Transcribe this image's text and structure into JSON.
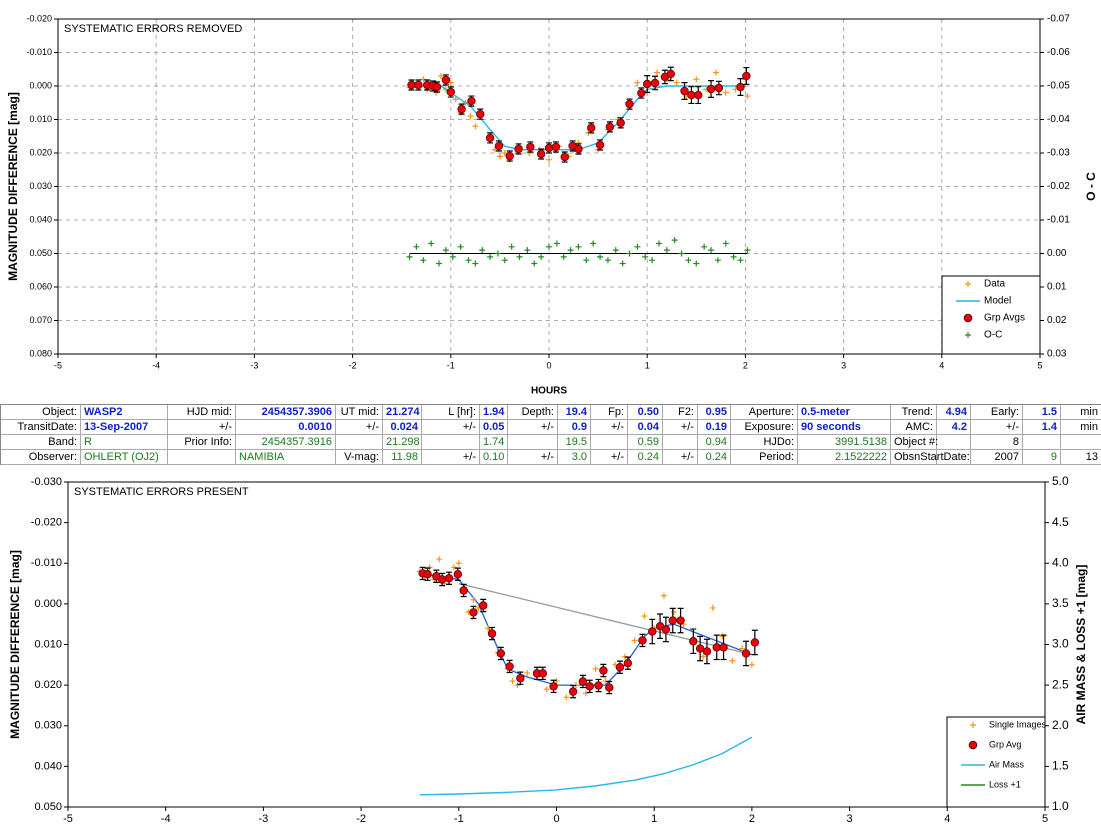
{
  "chart_data": [
    {
      "type": "scatter",
      "title": "SYSTEMATIC ERRORS REMOVED",
      "x_label": "HOURS",
      "y_label": "MAGNITUDE DIFFERENCE [mag]",
      "y2_label": "O - C",
      "xlim": [
        -5,
        5
      ],
      "xticks": [
        -5,
        -4,
        -3,
        -2,
        -1,
        0,
        1,
        2,
        3,
        4,
        5
      ],
      "ylim": [
        0.08,
        -0.02
      ],
      "yticks": [
        {
          "value": -0.02,
          "label": "-0.020"
        },
        {
          "value": -0.01,
          "label": "-0.010"
        },
        {
          "value": 0,
          "label": "0.000"
        },
        {
          "value": 0.01,
          "label": "0.010"
        },
        {
          "value": 0.02,
          "label": "0.020"
        },
        {
          "value": 0.03,
          "label": "0.030"
        },
        {
          "value": 0.04,
          "label": "0.040"
        },
        {
          "value": 0.05,
          "label": "0.050"
        },
        {
          "value": 0.06,
          "label": "0.060"
        },
        {
          "value": 0.07,
          "label": "0.070"
        },
        {
          "value": 0.08,
          "label": "0.080"
        }
      ],
      "y2lim": [
        0.03,
        -0.07
      ],
      "y2ticks": [
        -0.07,
        -0.06,
        -0.05,
        -0.04,
        -0.03,
        -0.02,
        -0.01,
        {
          "value": 0,
          "label": "0.00"
        },
        0.01,
        0.02,
        0.03
      ],
      "grid": true,
      "legend": "lower right",
      "series": [
        {
          "name": "Data",
          "color": "#f7931e",
          "marker": "plus",
          "x": [
            -1.42,
            -1.38,
            -1.33,
            -1.28,
            -1.24,
            -1.2,
            -1.15,
            -1.1,
            -1.05,
            -1.0,
            -0.95,
            -0.9,
            -0.85,
            -0.8,
            -0.75,
            -0.7,
            -0.6,
            -0.55,
            -0.5,
            -0.45,
            -0.4,
            -0.3,
            -0.2,
            -0.1,
            0.0,
            0.1,
            0.2,
            0.3,
            0.4,
            0.5,
            0.6,
            0.7,
            0.8,
            0.9,
            1.0,
            1.1,
            1.2,
            1.3,
            1.4,
            1.5,
            1.6,
            1.7,
            1.8,
            1.9,
            2.0,
            2.02
          ],
          "values": [
            0.0005,
            -0.001,
            0.0003,
            -0.002,
            0.001,
            -0.0008,
            0.002,
            -0.003,
            0.001,
            -0.001,
            0.004,
            0.008,
            0.005,
            0.009,
            0.012,
            0.009,
            0.016,
            0.019,
            0.021,
            0.02,
            0.022,
            0.018,
            0.02,
            0.019,
            0.022,
            0.018,
            0.021,
            0.017,
            0.014,
            0.019,
            0.013,
            0.01,
            0.005,
            -0.001,
            0.002,
            -0.004,
            -0.002,
            -0.001,
            0.003,
            -0.002,
            0.001,
            -0.004,
            0.002,
            0.001,
            -0.002,
            0.003
          ]
        },
        {
          "name": "Model",
          "color": "#29b6e8",
          "marker": "line",
          "x": [
            -1.4,
            -1.1,
            -1.0,
            -0.8,
            -0.6,
            -0.45,
            -0.3,
            0,
            0.3,
            0.5,
            0.7,
            0.9,
            1.0,
            1.2,
            2.0
          ],
          "values": [
            0,
            0,
            0.002,
            0.006,
            0.013,
            0.018,
            0.019,
            0.019,
            0.019,
            0.017,
            0.011,
            0.004,
            0.001,
            0,
            0
          ]
        },
        {
          "name": "Grp Avgs",
          "color": "#e8000b",
          "marker": "circle",
          "x": [
            -1.4,
            -1.33,
            -1.24,
            -1.18,
            -1.14,
            -1.05,
            -1.0,
            -0.89,
            -0.79,
            -0.7,
            -0.6,
            -0.51,
            -0.4,
            -0.31,
            -0.19,
            -0.08,
            0.0,
            0.07,
            0.16,
            0.24,
            0.3,
            0.43,
            0.52,
            0.62,
            0.73,
            0.82,
            0.94,
            1.0,
            1.08,
            1.18,
            1.24,
            1.38,
            1.45,
            1.52,
            1.65,
            1.73,
            1.95,
            2.01
          ],
          "values": [
            -0.0003,
            -0.0003,
            -0.0003,
            0,
            0.0003,
            -0.0018,
            0.0018,
            0.0069,
            0.0045,
            0.0084,
            0.0155,
            0.0179,
            0.0209,
            0.0188,
            0.0182,
            0.0203,
            0.0185,
            0.0182,
            0.0212,
            0.0179,
            0.0188,
            0.0125,
            0.0176,
            0.0122,
            0.011,
            0.0054,
            0.0021,
            -0.0006,
            -0.0009,
            -0.0027,
            -0.0036,
            0.0015,
            0.0027,
            0.0027,
            0.0009,
            0.0006,
            0.0003,
            -0.003
          ],
          "errors": [
            0.0015,
            0.0015,
            0.0015,
            0.0015,
            0.0015,
            0.0015,
            0.0015,
            0.0015,
            0.0015,
            0.0015,
            0.0015,
            0.0015,
            0.0015,
            0.0015,
            0.0015,
            0.0015,
            0.0015,
            0.0015,
            0.0015,
            0.0015,
            0.0015,
            0.0015,
            0.0015,
            0.0015,
            0.0015,
            0.0015,
            0.0015,
            0.0025,
            0.002,
            0.002,
            0.002,
            0.0025,
            0.0025,
            0.0025,
            0.0025,
            0.002,
            0.0025,
            0.0025
          ]
        },
        {
          "name": "O-C",
          "color": "#1e8c1e",
          "marker": "plus",
          "axis": "y2",
          "zero_line": true,
          "x": [
            -1.42,
            -1.35,
            -1.28,
            -1.2,
            -1.12,
            -1.05,
            -0.98,
            -0.9,
            -0.82,
            -0.75,
            -0.68,
            -0.6,
            -0.52,
            -0.45,
            -0.38,
            -0.3,
            -0.22,
            -0.15,
            -0.08,
            0.0,
            0.08,
            0.15,
            0.22,
            0.3,
            0.38,
            0.45,
            0.52,
            0.6,
            0.68,
            0.75,
            0.82,
            0.9,
            0.98,
            1.05,
            1.12,
            1.2,
            1.28,
            1.35,
            1.42,
            1.5,
            1.58,
            1.65,
            1.72,
            1.8,
            1.88,
            1.95,
            2.02
          ],
          "values": [
            0.001,
            -0.002,
            0.002,
            -0.003,
            0.003,
            -0.001,
            0.001,
            -0.002,
            0.002,
            0.003,
            -0.001,
            0.001,
            0,
            0.002,
            -0.002,
            0.001,
            -0.001,
            0.003,
            0.001,
            -0.002,
            -0.003,
            0.001,
            -0.001,
            -0.002,
            0.002,
            -0.003,
            0.001,
            0.002,
            -0.001,
            0.003,
            0,
            -0.002,
            0.001,
            0.002,
            -0.003,
            -0.001,
            -0.004,
            0,
            0.002,
            0.003,
            -0.002,
            -0.001,
            0.002,
            -0.003,
            0.001,
            0.002,
            -0.001
          ]
        }
      ]
    },
    {
      "type": "scatter",
      "title": "SYSTEMATIC ERRORS PRESENT",
      "y_label": "MAGNITUDE DIFFERENCE [mag]",
      "y2_label": "AIR MASS & LOSS +1 [mag]",
      "xlim": [
        -5,
        5
      ],
      "xticks": [
        -5,
        -4,
        -3,
        -2,
        -1,
        0,
        1,
        2,
        3,
        4,
        5
      ],
      "ylim": [
        0.05,
        -0.03
      ],
      "yticks": [
        {
          "value": -0.03,
          "label": "-0.030"
        },
        {
          "value": -0.02,
          "label": "-0.020"
        },
        {
          "value": -0.01,
          "label": "-0.010"
        },
        {
          "value": 0,
          "label": "0.000"
        },
        {
          "value": 0.01,
          "label": "0.010"
        },
        {
          "value": 0.02,
          "label": "0.020"
        },
        {
          "value": 0.03,
          "label": "0.030"
        },
        {
          "value": 0.04,
          "label": "0.040"
        },
        {
          "value": 0.05,
          "label": "0.050"
        }
      ],
      "y2lim": [
        1,
        5
      ],
      "y2ticks": [
        {
          "value": 5,
          "label": "5.0"
        },
        4.5,
        {
          "value": 4,
          "label": "4.0"
        },
        3.5,
        {
          "value": 3,
          "label": "3.0"
        },
        2.5,
        {
          "value": 2,
          "label": "2.0"
        },
        1.5,
        {
          "value": 1,
          "label": "1.0"
        }
      ],
      "grid": false,
      "legend": "lower right",
      "lines": [
        {
          "color": "#999999",
          "x": [
            -1.0,
            2.0
          ],
          "values": [
            -0.005,
            0.0125
          ]
        },
        {
          "color": "#1f5fd6",
          "x": [
            -1.4,
            -1.0,
            -0.8,
            -0.6,
            -0.5,
            -0.3,
            0,
            0.5,
            0.7,
            0.9,
            1.0,
            1.2,
            2.0
          ],
          "values": [
            -0.0075,
            -0.006,
            0,
            0.011,
            0.016,
            0.018,
            0.02,
            0.02,
            0.015,
            0.008,
            0.006,
            0.005,
            0.0125
          ]
        }
      ],
      "series": [
        {
          "name": "Single Images",
          "color": "#f7931e",
          "marker": "plus",
          "x": [
            -1.4,
            -1.35,
            -1.3,
            -1.25,
            -1.2,
            -1.15,
            -1.1,
            -1.05,
            -1.0,
            -0.95,
            -0.9,
            -0.85,
            -0.8,
            -0.7,
            -0.6,
            -0.5,
            -0.45,
            -0.4,
            -0.3,
            -0.2,
            -0.1,
            0.0,
            0.1,
            0.2,
            0.3,
            0.4,
            0.5,
            0.6,
            0.7,
            0.8,
            0.9,
            1.0,
            1.1,
            1.2,
            1.3,
            1.4,
            1.5,
            1.6,
            1.7,
            1.8,
            1.9,
            2.0
          ],
          "values": [
            -0.008,
            -0.007,
            -0.009,
            -0.006,
            -0.011,
            -0.005,
            -0.007,
            -0.009,
            -0.01,
            -0.004,
            0.002,
            -0.001,
            0.001,
            0.006,
            0.012,
            0.016,
            0.019,
            0.02,
            0.017,
            0.018,
            0.021,
            0.019,
            0.023,
            0.02,
            0.022,
            0.016,
            0.019,
            0.015,
            0.013,
            0.009,
            0.003,
            0.006,
            -0.002,
            0.002,
            0.005,
            0.009,
            0.013,
            0.001,
            0.008,
            0.014,
            0.011,
            0.015
          ]
        },
        {
          "name": "Grp Avg",
          "color": "#e8000b",
          "marker": "circle",
          "x": [
            -1.37,
            -1.32,
            -1.23,
            -1.17,
            -1.1,
            -1.01,
            -0.95,
            -0.85,
            -0.75,
            -0.66,
            -0.57,
            -0.48,
            -0.37,
            -0.2,
            -0.14,
            -0.03,
            0.17,
            0.27,
            0.34,
            0.43,
            0.48,
            0.54,
            0.65,
            0.73,
            0.88,
            0.98,
            1.06,
            1.12,
            1.19,
            1.27,
            1.4,
            1.47,
            1.54,
            1.64,
            1.71,
            1.94,
            2.03
          ],
          "values": [
            -0.0075,
            -0.0073,
            -0.0068,
            -0.006,
            -0.0063,
            -0.0073,
            -0.0033,
            0.0021,
            0.0004,
            0.0073,
            0.0122,
            0.0154,
            0.0183,
            0.0171,
            0.0171,
            0.0203,
            0.0216,
            0.0191,
            0.0203,
            0.0201,
            0.0164,
            0.0206,
            0.0156,
            0.0146,
            0.009,
            0.0068,
            0.0055,
            0.0063,
            0.0041,
            0.0041,
            0.0092,
            0.011,
            0.0117,
            0.0107,
            0.0107,
            0.0122,
            0.0095
          ],
          "errors": [
            0.0015,
            0.0015,
            0.0015,
            0.0015,
            0.0015,
            0.0015,
            0.0015,
            0.0015,
            0.0015,
            0.0015,
            0.0015,
            0.0015,
            0.0015,
            0.0015,
            0.0015,
            0.0015,
            0.0015,
            0.0015,
            0.0015,
            0.0015,
            0.0015,
            0.0015,
            0.0015,
            0.0015,
            0.0015,
            0.003,
            0.003,
            0.003,
            0.003,
            0.003,
            0.003,
            0.003,
            0.003,
            0.003,
            0.003,
            0.003,
            0.003
          ]
        },
        {
          "name": "Air Mass",
          "color": "#29b6e8",
          "marker": "line",
          "axis": "y2",
          "x": [
            -1.4,
            -1.0,
            -0.5,
            0,
            0.4,
            0.8,
            1.1,
            1.4,
            1.7,
            2.0
          ],
          "values": [
            1.15,
            1.16,
            1.18,
            1.21,
            1.26,
            1.33,
            1.41,
            1.52,
            1.66,
            1.86
          ]
        },
        {
          "name": "Loss +1",
          "color": "#1e8c1e",
          "marker": "line",
          "axis": "y2"
        }
      ]
    }
  ],
  "table": {
    "rows": [
      [
        "Object:",
        "WASP2",
        "HJD mid:",
        "2454357.3906",
        "UT mid:",
        "21.274",
        "L [hr]:",
        "1.94",
        "Depth:",
        "19.4",
        "Fp:",
        "0.50",
        "F2:",
        "0.95",
        "Aperture:",
        "0.5-meter",
        "Trend:",
        "4.94",
        "Early:",
        "1.5",
        "min"
      ],
      [
        "TransitDate:",
        "13-Sep-2007",
        "+/-",
        "0.0010",
        "+/-",
        "0.024",
        "+/-",
        "0.05",
        "+/-",
        "0.9",
        "+/-",
        "0.04",
        "+/-",
        "0.19",
        "Exposure:",
        "90 seconds",
        "AMC:",
        "4.2",
        "+/-",
        "1.4",
        "min"
      ],
      [
        "Band:",
        "R",
        "Prior Info:",
        "2454357.3916",
        null,
        "21.298",
        null,
        "1.74",
        null,
        "19.5",
        null,
        "0.59",
        null,
        "0.94",
        "HJDo:",
        "3991.5138",
        "Object #:",
        null,
        "8",
        null,
        null
      ],
      [
        "Observer:",
        "OHLERT (OJ2)",
        null,
        "NAMIBIA",
        "V-mag:",
        "11.98",
        "+/-",
        "0.10",
        "+/-",
        "3.0",
        "+/-",
        "0.24",
        "+/-",
        "0.24",
        "Period:",
        "2.1522222",
        "ObsnStartDate:",
        null,
        "2007",
        "9",
        "13"
      ]
    ]
  }
}
